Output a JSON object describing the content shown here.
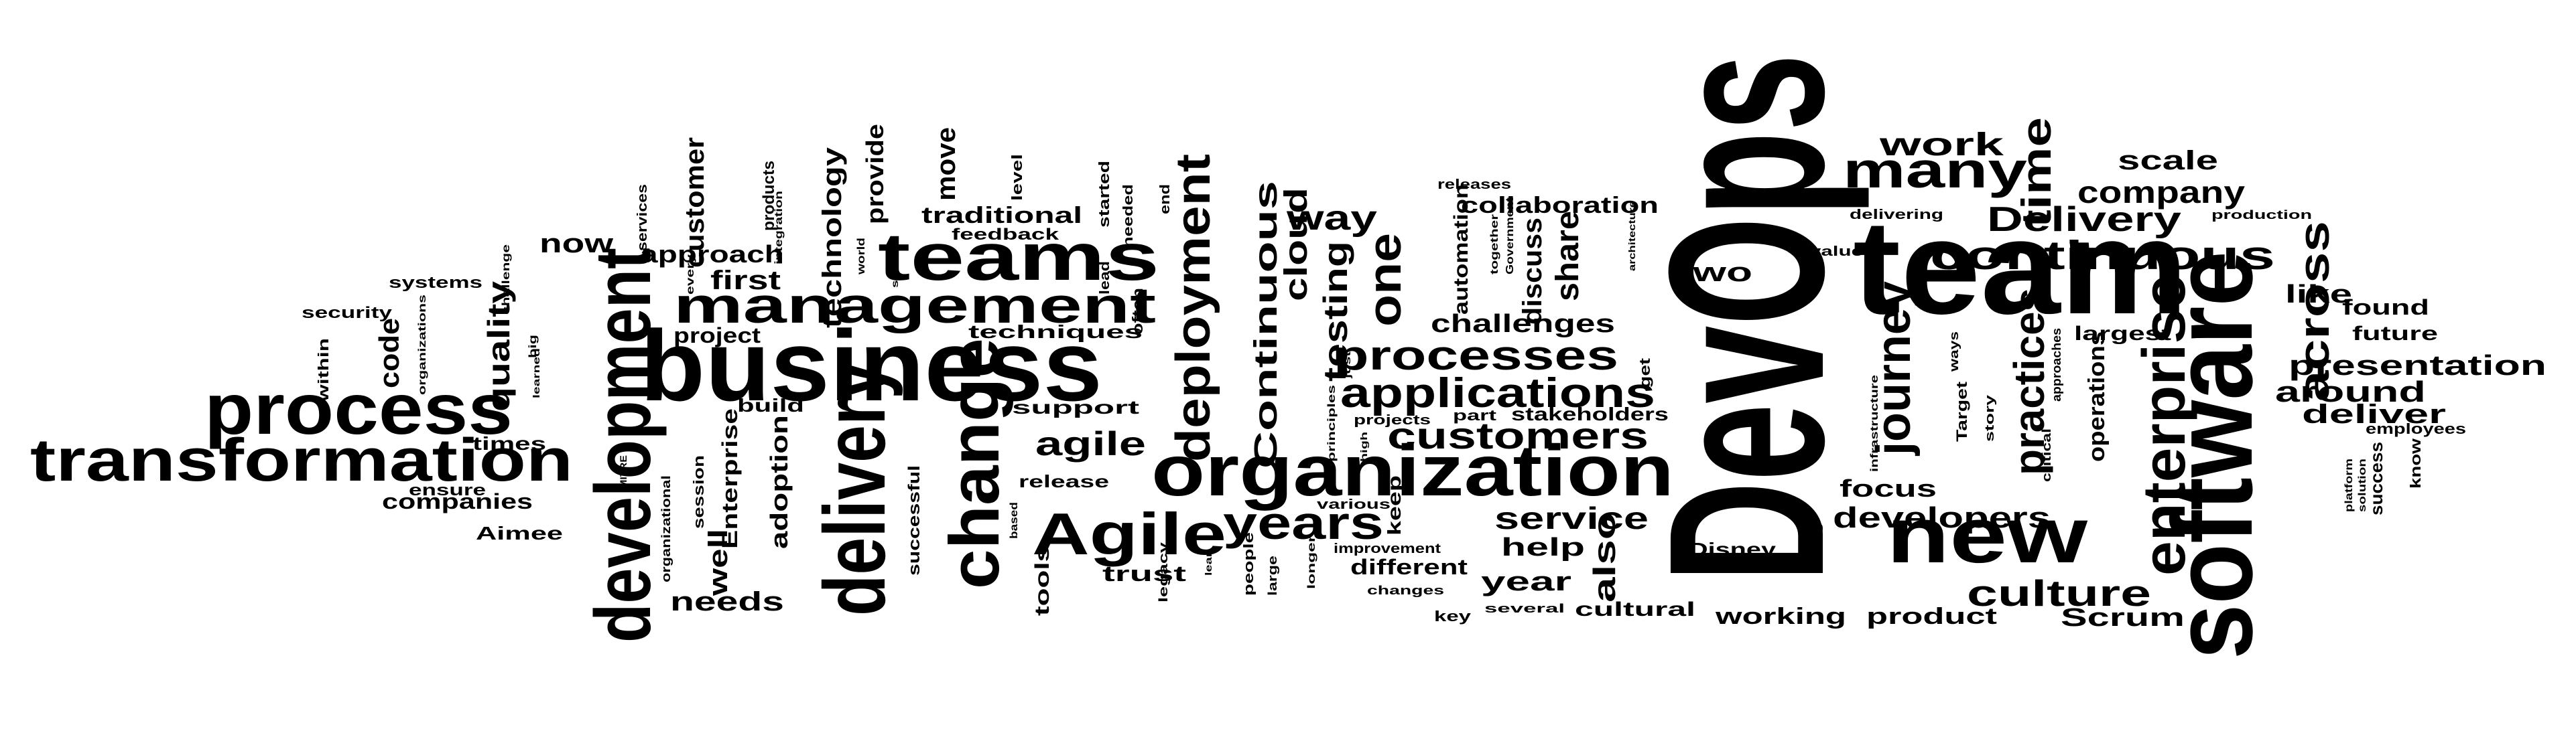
{
  "colors": {
    "background": "#ffffff",
    "ink": "#000000"
  },
  "words": {
    "devops": "DevOps",
    "software": "software",
    "team": "team",
    "business": "business",
    "organization": "organization",
    "development": "development",
    "delivery": "delivery",
    "process": "process",
    "transformation": "transformation",
    "teams": "teams",
    "management": "management",
    "change": "change",
    "enterprise": "enterprise",
    "new": "new",
    "continuous": "continuous",
    "agile_cap": "Agile",
    "years": "years",
    "processes": "processes",
    "applications": "applications",
    "customers": "customers",
    "many": "many",
    "deployment": "deployment",
    "journey": "journey",
    "practices": "practices",
    "across": "across",
    "culture": "culture",
    "work": "work",
    "time": "time",
    "delivery_cap": "Delivery",
    "company": "company",
    "scale": "scale",
    "presentation": "presentation",
    "around": "around",
    "deliver": "deliver",
    "developers": "developers",
    "focus": "focus",
    "one": "one",
    "way": "way",
    "testing": "testing",
    "cloud": "cloud",
    "continuous_cap": "Continuous",
    "service": "service",
    "agile": "agile",
    "collaboration": "collaboration",
    "discuss": "discuss",
    "share": "share",
    "challenges": "challenges",
    "automation": "automation",
    "two": "two",
    "scrum": "Scrum",
    "product": "product",
    "working": "working",
    "cultural": "cultural",
    "year": "year",
    "help": "help",
    "also": "also",
    "stakeholders": "stakeholders",
    "disney": "Disney",
    "operations": "operations",
    "largest": "largest",
    "like": "like",
    "found": "found",
    "future": "future",
    "employees": "employees",
    "success": "success",
    "know": "know",
    "platform": "platform",
    "solution": "solution",
    "production": "production",
    "value": "value",
    "delivering": "delivering",
    "target": "Target",
    "story": "story",
    "ways": "ways",
    "approaches": "approaches",
    "critical": "critical",
    "infrastructure": "infrastructure",
    "etc": "etc",
    "architecture": "architecture",
    "government": "Government",
    "together": "together",
    "releases": "releases",
    "get": "get",
    "part": "part",
    "projects": "projects",
    "principles": "principles",
    "just": "just",
    "high": "high",
    "keep": "keep",
    "various": "various",
    "improvement": "improvement",
    "different": "different",
    "changes": "changes",
    "key": "key",
    "several": "several",
    "longer": "longer",
    "large": "large",
    "people": "people",
    "lean": "lean",
    "legacy": "legacy",
    "trust": "trust",
    "tools": "tools",
    "based": "based",
    "release": "release",
    "support": "support",
    "techniques": "techniques",
    "traditional": "traditional",
    "feedback": "feedback",
    "provide": "provide",
    "move": "move",
    "level": "level",
    "started": "started",
    "needed": "needed",
    "end": "end",
    "often": "often",
    "lead": "lead",
    "set": "set",
    "world": "world",
    "technology": "technology",
    "integration": "integration",
    "products": "products",
    "services": "services",
    "customer": "customer",
    "every": "every",
    "first": "first",
    "approach": "approach",
    "project": "project",
    "build": "build",
    "adoption": "adoption",
    "successful": "successful",
    "enterprise_cap": "Enterprise",
    "session": "session",
    "well": "well",
    "organizational": "organizational",
    "needs": "needs",
    "mitre": "MITRE",
    "now": "now",
    "code": "code",
    "quality": "quality",
    "systems": "systems",
    "challenge": "challenge",
    "organizations": "organizations",
    "learned": "learned",
    "big": "big",
    "security": "security",
    "within": "within",
    "times": "times",
    "ensure": "ensure",
    "companies": "companies",
    "aimee": "Aimee"
  }
}
